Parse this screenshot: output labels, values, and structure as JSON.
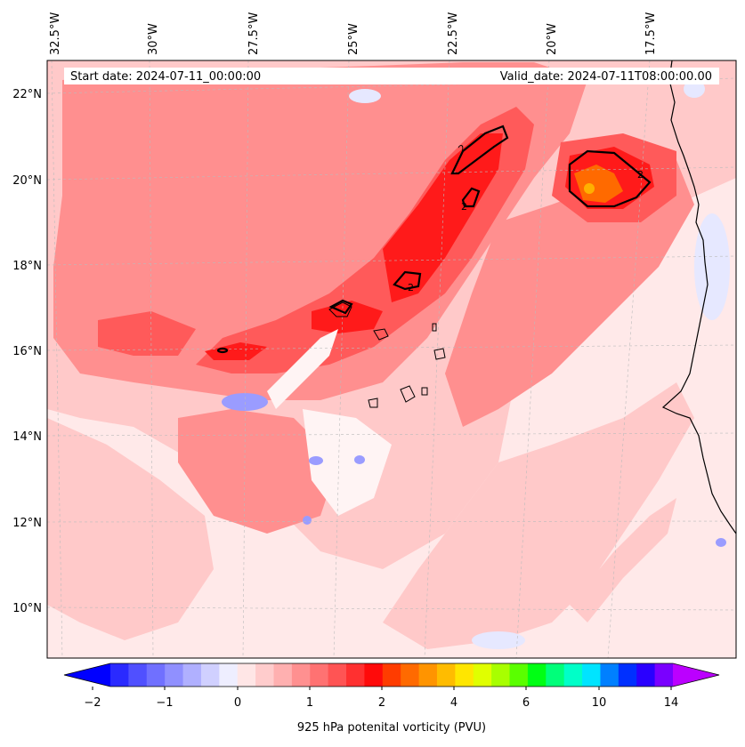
{
  "map": {
    "start_date_text": "Start date: 2024-07-11_00:00:00",
    "valid_date_text": "Valid_date: 2024-07-11T08:00:00.00",
    "lon_labels": [
      "32.5°W",
      "30°W",
      "27.5°W",
      "25°W",
      "22.5°W",
      "20°W",
      "17.5°W"
    ],
    "lat_labels": [
      "22°N",
      "20°N",
      "18°N",
      "16°N",
      "14°N",
      "12°N",
      "10°N"
    ],
    "contour_label": "2",
    "field_colors": {
      "background": "#ffe9e9",
      "light": "#ffc9c9",
      "medium": "#ff8f8f",
      "strong": "#ff5a5a",
      "core": "#ff1a1a",
      "orange": "#ff6a00",
      "blue_light": "#e6e8ff",
      "blue": "#9a9cff"
    }
  },
  "colorbar": {
    "label": "925 hPa potenital vorticity (PVU)",
    "tick_labels": [
      "−2",
      "−1",
      "0",
      "1",
      "2",
      "4",
      "6",
      "10",
      "14"
    ],
    "colors": [
      "#0000ff",
      "#2a2aff",
      "#5050ff",
      "#7070ff",
      "#9090ff",
      "#b0b0ff",
      "#d0d0ff",
      "#eeeeff",
      "#ffe6e6",
      "#ffcccc",
      "#ffb0b0",
      "#ff9090",
      "#ff7272",
      "#ff5454",
      "#ff3030",
      "#ff0a0a",
      "#ff3c00",
      "#ff6a00",
      "#ff9400",
      "#ffbc00",
      "#ffe600",
      "#e0ff00",
      "#a8ff00",
      "#5aff00",
      "#00ff14",
      "#00ff7a",
      "#00ffc8",
      "#00e4ff",
      "#0080ff",
      "#0030ff",
      "#2a00ff",
      "#7a00ff",
      "#bb00ff"
    ]
  }
}
